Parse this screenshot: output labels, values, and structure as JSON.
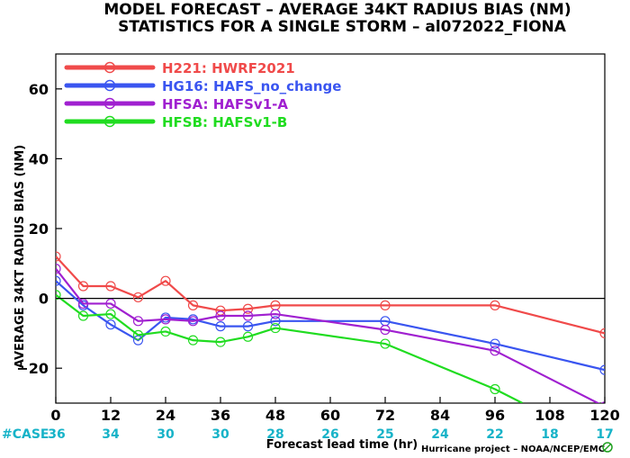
{
  "chart_data": {
    "type": "line",
    "title": "MODEL FORECAST – AVERAGE 34KT RADIUS BIAS (NM)",
    "subtitle": "STATISTICS FOR A SINGLE STORM – al072022_FIONA",
    "xlabel": "Forecast lead time (hr)",
    "ylabel": "AVERAGE 34KT RADIUS BIAS (NM)",
    "xlim": [
      0,
      120
    ],
    "ylim": [
      -30,
      70
    ],
    "xticks": [
      "0",
      "12",
      "24",
      "36",
      "48",
      "60",
      "72",
      "84",
      "96",
      "108",
      "120"
    ],
    "yticks": [
      "−20",
      "0",
      "20",
      "40",
      "60"
    ],
    "zero_line": true,
    "cases_label": "#CASE",
    "cases": [
      "36",
      "34",
      "30",
      "30",
      "28",
      "26",
      "25",
      "24",
      "22",
      "18",
      "17"
    ],
    "legend_position": "top-left",
    "series": [
      {
        "name": "H221: HWRF2021",
        "color": "#f04a4a",
        "x": [
          0,
          6,
          12,
          18,
          24,
          30,
          36,
          42,
          48,
          72,
          96,
          120
        ],
        "y": [
          12,
          3.5,
          3.5,
          0.3,
          5,
          -2,
          -3.5,
          -3,
          -2,
          -2,
          -2,
          -10
        ],
        "markers": true
      },
      {
        "name": "HG16: HAFS_no_change",
        "color": "#3a55f0",
        "x": [
          0,
          6,
          12,
          18,
          24,
          30,
          36,
          42,
          48,
          72,
          96,
          120
        ],
        "y": [
          5,
          -2,
          -7.5,
          -12,
          -5.5,
          -6,
          -8,
          -8,
          -6.5,
          -6.5,
          -13,
          -20.5
        ],
        "markers": true
      },
      {
        "name": "HFSA: HAFSv1-A",
        "color": "#a020d0",
        "x": [
          0,
          6,
          12,
          18,
          24,
          30,
          36,
          42,
          48,
          72,
          96,
          120
        ],
        "y": [
          8.5,
          -1.5,
          -1.5,
          -6.5,
          -6,
          -6.5,
          -5,
          -5,
          -4.5,
          -9,
          -15,
          -31
        ],
        "markers": true
      },
      {
        "name": "HFSB: HAFSv1-B",
        "color": "#20dc20",
        "x": [
          0,
          6,
          12,
          18,
          24,
          30,
          36,
          42,
          48,
          72,
          96,
          102
        ],
        "y": [
          1,
          -5,
          -4.5,
          -10.5,
          -9.5,
          -12,
          -12.5,
          -11,
          -8.5,
          -13,
          -26,
          -30
        ],
        "markers": true,
        "marker_count": 11
      }
    ]
  },
  "footer": "Hurricane project – NOAA/NCEP/EMC",
  "colors": {
    "case_label": "#17b3c8",
    "axis": "#000000",
    "zero_line": "#000000"
  }
}
